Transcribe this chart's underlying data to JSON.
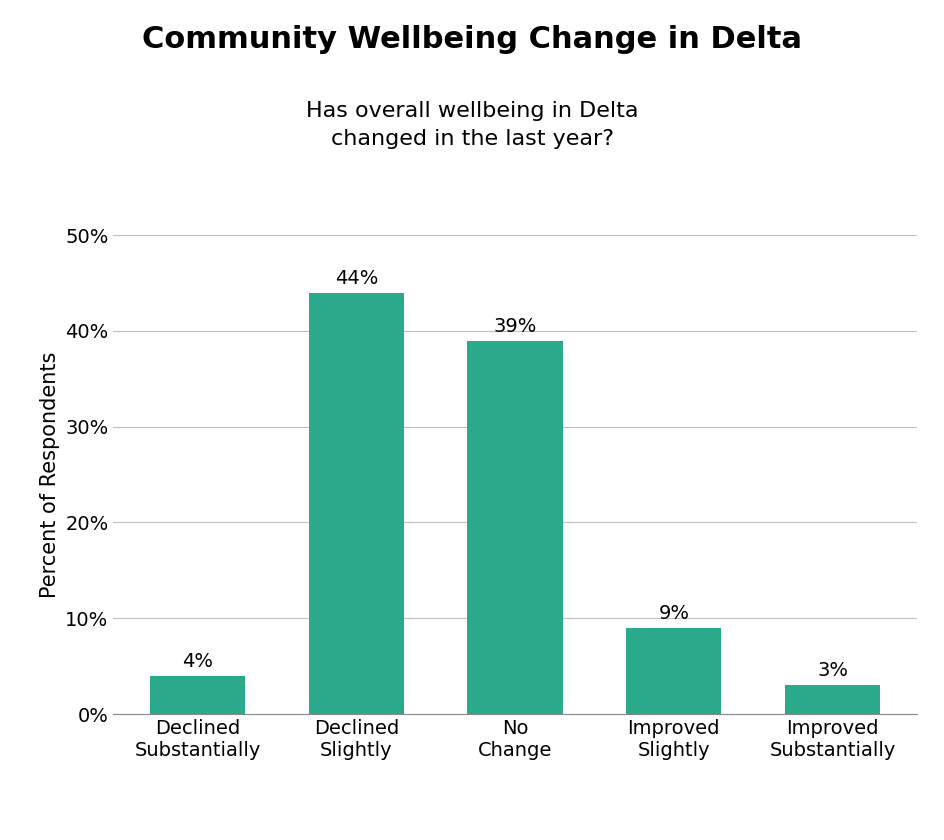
{
  "title": "Community Wellbeing Change in Delta",
  "subtitle": "Has overall wellbeing in Delta\nchanged in the last year?",
  "categories": [
    "Declined\nSubstantially",
    "Declined\nSlightly",
    "No\nChange",
    "Improved\nSlightly",
    "Improved\nSubstantially"
  ],
  "values": [
    4,
    44,
    39,
    9,
    3
  ],
  "bar_color": "#2aaa8a",
  "ylabel": "Percent of Respondents",
  "ylim": [
    0,
    50
  ],
  "yticks": [
    0,
    10,
    20,
    30,
    40,
    50
  ],
  "ytick_labels": [
    "0%",
    "10%",
    "20%",
    "30%",
    "40%",
    "50%"
  ],
  "title_fontsize": 22,
  "subtitle_fontsize": 16,
  "ylabel_fontsize": 15,
  "tick_label_fontsize": 14,
  "value_label_fontsize": 14,
  "background_color": "#ffffff",
  "grid_color": "#c0c0c0"
}
